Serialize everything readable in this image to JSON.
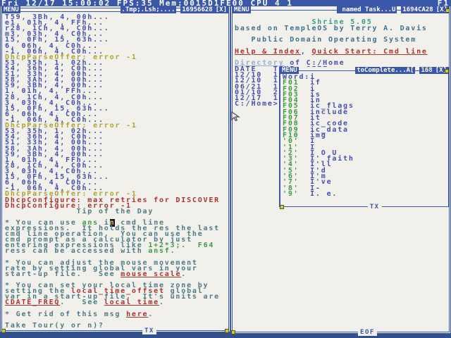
{
  "status_bar": {
    "left": "Fri 12/17 15:00:02 FPS:35 Mem:0015D1FE00 CPU 4 1",
    "right": "F1"
  },
  "windows": {
    "console": {
      "title": {
        "menu": "MENU",
        "name": ".Tmp;.Lsh;....",
        "mem": "16956628",
        "close": "[X]"
      },
      "bottom": "TX",
      "rows": [
        [
          [
            "b",
            "T59, 3Bh, 4, 00h..."
          ]
        ],
        [
          [
            "b",
            "e1, 01h, 4, FFh..."
          ]
        ],
        [
          [
            "b",
            "r28, 1Ch, 4, C0h..."
          ]
        ],
        [
          [
            "b",
            "m3, 03h, 4, C0h..."
          ]
        ],
        [
          [
            "b",
            "15, 0Fh, 15, 63h..."
          ]
        ],
        [
          [
            "b",
            "6, 06h, 4, C0h..."
          ]
        ],
        [
          [
            "b",
            "-1, 06h, 4, C0h..."
          ]
        ],
        [
          [
            "y",
            "DhcpParseOffer: error -1"
          ]
        ],
        [
          [
            "b",
            "53, 35h, 1, 02h..."
          ]
        ],
        [
          [
            "b",
            "54, 36h, 4, C0h..."
          ]
        ],
        [
          [
            "b",
            "51, 33h, 4, 00h..."
          ]
        ],
        [
          [
            "b",
            "58, 3Ah, 4, 00h..."
          ]
        ],
        [
          [
            "b",
            "59, 3Bh, 4, 00h..."
          ]
        ],
        [
          [
            "b",
            "1, 01h, 4, FFh..."
          ]
        ],
        [
          [
            "b",
            "28, 1Ch, 4, C0h..."
          ]
        ],
        [
          [
            "b",
            "3, 03h, 4, C0h..."
          ]
        ],
        [
          [
            "b",
            "15, 0Fh, 15, 63h..."
          ]
        ],
        [
          [
            "b",
            "6, 06h, 4, C0h..."
          ]
        ],
        [
          [
            "b",
            "-1, 06h, 4, C0h..."
          ]
        ],
        [
          [
            "y",
            "DhcpParseOffer: error -1"
          ]
        ],
        [
          [
            "b",
            "53, 35h, 1, 02h..."
          ]
        ],
        [
          [
            "b",
            "54, 36h, 4, C0h..."
          ]
        ],
        [
          [
            "b",
            "51, 33h, 4, 00h..."
          ]
        ],
        [
          [
            "b",
            "58, 3Ah, 4, 00h..."
          ]
        ],
        [
          [
            "b",
            "59, 3Bh, 4, 00h..."
          ]
        ],
        [
          [
            "b",
            "1, 01h, 4, FFh..."
          ]
        ],
        [
          [
            "b",
            "28, 1Ch, 4, C0h..."
          ]
        ],
        [
          [
            "b",
            "3, 03h, 4, C0h..."
          ]
        ],
        [
          [
            "b",
            "15, 0Fh, 15, 63h..."
          ]
        ],
        [
          [
            "b",
            "6, 06h, 4, C0h..."
          ]
        ],
        [
          [
            "b",
            "-1, 06h, 4, C0h..."
          ]
        ],
        [
          [
            "y",
            "DhcpParseOffer: error -1"
          ]
        ],
        [
          [
            "r",
            "DhcpConfigure: max retries for DISCOVER"
          ]
        ],
        [
          [
            "r",
            "DhcpConfigure: error -1"
          ]
        ],
        [
          [
            "t",
            "             Tip of the Day"
          ]
        ],
        [],
        [
          [
            "t",
            "* You can use "
          ],
          [
            "g",
            "ans"
          ],
          [
            "t",
            " i"
          ],
          [
            "cur",
            "n"
          ],
          [
            "t",
            " cmd line"
          ]
        ],
        [
          [
            "t",
            "expressions.  It holds the res the last"
          ]
        ],
        [
          [
            "t",
            "cmd line operation.  You can use the"
          ]
        ],
        [
          [
            "t",
            "cmd prompt as a calculator by just"
          ]
        ],
        [
          [
            "t",
            "entering expressions like "
          ],
          [
            "g",
            "1+2*3;."
          ],
          [
            "t",
            "  "
          ],
          [
            "g",
            "F64"
          ]
        ],
        [
          [
            "t",
            "ress can be accessed with "
          ],
          [
            "g",
            "ansf"
          ],
          [
            "t",
            "."
          ]
        ],
        [],
        [
          [
            "t",
            "* You can adjust the mouse movement"
          ]
        ],
        [
          [
            "t",
            "rate by setting global vars in your"
          ]
        ],
        [
          [
            "t",
            "start-up file.   See "
          ],
          [
            "rl",
            "mouse scale"
          ],
          [
            "t",
            "."
          ]
        ],
        [],
        [
          [
            "t",
            "* You can set your local time zone by"
          ]
        ],
        [
          [
            "t",
            "setting the "
          ],
          [
            "r",
            "local_time_offset"
          ],
          [
            "t",
            " global"
          ]
        ],
        [
          [
            "t",
            "var in a start-up file.  It's units are"
          ]
        ],
        [
          [
            "rl",
            "CDATE_FREQ"
          ],
          [
            "t",
            ".   See "
          ],
          [
            "rl",
            "local time"
          ],
          [
            "t",
            "."
          ]
        ],
        [],
        [
          [
            "t",
            "* Get rid of this msg "
          ],
          [
            "rl",
            "here"
          ],
          [
            "t",
            "."
          ]
        ],
        [],
        [
          [
            "t",
            "Take Tour(y or n)?"
          ]
        ]
      ]
    },
    "doc": {
      "title": {
        "menu": "MENU",
        "name": " named Task...U",
        "mem": "1694CA28",
        "close": "[X]"
      },
      "bottom": "EOF",
      "rows": [
        [],
        [
          [
            "gc",
            "              Shrine 5.05"
          ]
        ],
        [
          [
            "s",
            "based on TempleOS by Terry A. Davis"
          ]
        ],
        [],
        [
          [
            "s",
            "   Public Domain Operating System"
          ]
        ],
        [],
        [
          [
            "rl",
            "Help & Index"
          ],
          [
            "b",
            ", "
          ],
          [
            "rl",
            "Quick Start: Cmd line"
          ]
        ],
        [],
        [
          [
            "lb",
            "Directory"
          ],
          [
            "b",
            " of C:/Home"
          ]
        ],
        [
          [
            "b",
            "DATE   TIME  SIZE"
          ]
        ],
        [
          [
            "b",
            "12/10  10:"
          ]
        ],
        [
          [
            "b",
            "12/10  10:t"
          ]
        ],
        [
          [
            "b",
            "06/21  11:e"
          ]
        ],
        [
          [
            "b",
            "01/10  23:r"
          ]
        ],
        [
          [
            "b",
            "12/17  13:m"
          ]
        ],
        [
          [
            "b",
            "C:/Home>"
          ],
          [
            "k",
            "  "
          ]
        ]
      ]
    },
    "popup": {
      "title": {
        "menu": "MENU",
        "name": "toComplete...A[",
        "mem": "168",
        "close": "[X]"
      },
      "bottom": "TX",
      "rows": [
        [
          [
            "b",
            "Word:i"
          ]
        ],
        [
          [
            "g",
            "F01"
          ],
          [
            "b",
            "  if"
          ]
        ],
        [
          [
            "g",
            "F02"
          ],
          [
            "b",
            "  i"
          ]
        ],
        [
          [
            "g",
            "F03"
          ],
          [
            "b",
            "  is"
          ]
        ],
        [
          [
            "g",
            "F04"
          ],
          [
            "b",
            "  in"
          ]
        ],
        [
          [
            "g",
            "F05"
          ],
          [
            "b",
            "  ic_flags"
          ]
        ],
        [
          [
            "g",
            "F06"
          ],
          [
            "b",
            "  include"
          ]
        ],
        [
          [
            "g",
            "F07"
          ],
          [
            "b",
            "  it"
          ]
        ],
        [
          [
            "g",
            "F08"
          ],
          [
            "b",
            "  ic_code"
          ]
        ],
        [
          [
            "g",
            "F09"
          ],
          [
            "b",
            "  ic_data"
          ]
        ],
        [
          [
            "g",
            "F10"
          ],
          [
            "b",
            "  img"
          ]
        ],
        [
          [
            "g",
            "'0'"
          ],
          [
            "b",
            "  I"
          ]
        ],
        [
          [
            "g",
            "'1'"
          ],
          [
            "b",
            "  I"
          ]
        ],
        [
          [
            "g",
            "'2'"
          ],
          [
            "b",
            "  I O U"
          ]
        ],
        [
          [
            "g",
            "'3'"
          ],
          [
            "b",
            "  I' faith"
          ]
        ],
        [
          [
            "g",
            "'4'"
          ],
          [
            "b",
            "  I'll"
          ]
        ],
        [
          [
            "g",
            "'5'"
          ],
          [
            "b",
            "  I'd"
          ]
        ],
        [
          [
            "g",
            "'6'"
          ],
          [
            "b",
            "  I'm"
          ]
        ],
        [
          [
            "g",
            "'7'"
          ],
          [
            "b",
            "  I've"
          ]
        ],
        [
          [
            "g",
            "'8'"
          ],
          [
            "b",
            "  I-"
          ]
        ],
        [
          [
            "g",
            "'9'"
          ],
          [
            "b",
            "  I. e."
          ]
        ]
      ]
    }
  }
}
